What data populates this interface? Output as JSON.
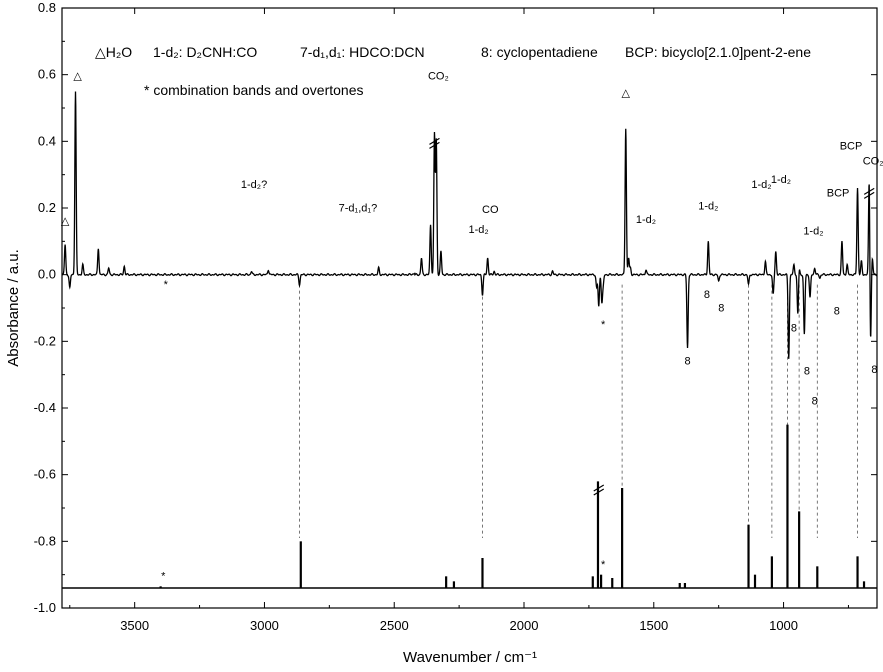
{
  "chart_data": {
    "type": "line",
    "xlabel": "Wavenumber / cm⁻¹",
    "ylabel": "Absorbance / a.u.",
    "xlim": [
      3780,
      640
    ],
    "ylim": [
      -1.0,
      0.8
    ],
    "x_ticks": [
      3500,
      3000,
      2500,
      2000,
      1500,
      1000
    ],
    "y_ticks": [
      0.8,
      0.6,
      0.4,
      0.2,
      0.0,
      -0.2,
      -0.4,
      -0.6,
      -0.8,
      -1.0
    ],
    "x_tick_labels": [
      "3500",
      "3000",
      "2500",
      "2000",
      "1500",
      "1000"
    ],
    "y_tick_labels": [
      "0.8",
      "0.6",
      "0.4",
      "0.2",
      "0.0",
      "-0.2",
      "-0.4",
      "-0.6",
      "-0.8",
      "-1.0"
    ],
    "grid": false,
    "legend": {
      "h2o": "△H₂O",
      "d2cnh": "1-d₂: D₂CNH:CO",
      "hdco": "7-d₁,d₁: HDCO:DCN",
      "cp": "8: cyclopentadiene",
      "bcp": "BCP: bicyclo[2.1.0]pent-2-ene",
      "star": "* combination bands and overtones"
    },
    "series": [
      {
        "role": "experimental difference spectrum",
        "baseline": 0.0,
        "peaks": [
          {
            "x": 3768,
            "y": 0.09
          },
          {
            "x": 3750,
            "y": -0.04
          },
          {
            "x": 3728,
            "y": 0.55
          },
          {
            "x": 3700,
            "y": 0.03
          },
          {
            "x": 3640,
            "y": 0.08
          },
          {
            "x": 3600,
            "y": 0.02
          },
          {
            "x": 3540,
            "y": 0.025
          },
          {
            "x": 3050,
            "y": 0.01
          },
          {
            "x": 2985,
            "y": 0.015
          },
          {
            "x": 2865,
            "y": -0.03
          },
          {
            "x": 2560,
            "y": 0.02
          },
          {
            "x": 2395,
            "y": 0.05
          },
          {
            "x": 2360,
            "y": 0.15
          },
          {
            "x": 2345,
            "y": 0.42
          },
          {
            "x": 2338,
            "y": 0.4
          },
          {
            "x": 2320,
            "y": 0.07
          },
          {
            "x": 2160,
            "y": -0.06
          },
          {
            "x": 2140,
            "y": 0.05
          },
          {
            "x": 2115,
            "y": 0.01
          },
          {
            "x": 1890,
            "y": 0.01
          },
          {
            "x": 1720,
            "y": -0.04
          },
          {
            "x": 1712,
            "y": -0.095
          },
          {
            "x": 1700,
            "y": -0.08
          },
          {
            "x": 1695,
            "y": -0.03
          },
          {
            "x": 1608,
            "y": 0.44
          },
          {
            "x": 1597,
            "y": 0.05
          },
          {
            "x": 1590,
            "y": 0.02
          },
          {
            "x": 1530,
            "y": 0.015
          },
          {
            "x": 1370,
            "y": -0.22
          },
          {
            "x": 1290,
            "y": 0.1
          },
          {
            "x": 1250,
            "y": -0.02
          },
          {
            "x": 1135,
            "y": -0.03
          },
          {
            "x": 1070,
            "y": 0.04
          },
          {
            "x": 1040,
            "y": -0.06
          },
          {
            "x": 1030,
            "y": 0.07
          },
          {
            "x": 980,
            "y": -0.25
          },
          {
            "x": 960,
            "y": 0.03
          },
          {
            "x": 945,
            "y": -0.12
          },
          {
            "x": 940,
            "y": 0.02
          },
          {
            "x": 920,
            "y": -0.18
          },
          {
            "x": 898,
            "y": -0.07
          },
          {
            "x": 880,
            "y": 0.02
          },
          {
            "x": 860,
            "y": -0.01
          },
          {
            "x": 775,
            "y": 0.1
          },
          {
            "x": 755,
            "y": 0.03
          },
          {
            "x": 715,
            "y": 0.26
          },
          {
            "x": 700,
            "y": 0.04
          },
          {
            "x": 670,
            "y": 0.3
          },
          {
            "x": 665,
            "y": -0.22
          },
          {
            "x": 658,
            "y": 0.05
          }
        ]
      },
      {
        "role": "calculated spectrum",
        "baseline": -0.94,
        "sticks": [
          {
            "x": 3400,
            "y": -0.935
          },
          {
            "x": 2860,
            "y": -0.8
          },
          {
            "x": 2300,
            "y": -0.905
          },
          {
            "x": 2270,
            "y": -0.92
          },
          {
            "x": 2160,
            "y": -0.85
          },
          {
            "x": 1735,
            "y": -0.905
          },
          {
            "x": 1715,
            "y": -0.62
          },
          {
            "x": 1703,
            "y": -0.9
          },
          {
            "x": 1660,
            "y": -0.91
          },
          {
            "x": 1622,
            "y": -0.64
          },
          {
            "x": 1400,
            "y": -0.925
          },
          {
            "x": 1380,
            "y": -0.925
          },
          {
            "x": 1135,
            "y": -0.75
          },
          {
            "x": 1110,
            "y": -0.9
          },
          {
            "x": 1045,
            "y": -0.845
          },
          {
            "x": 985,
            "y": -0.45
          },
          {
            "x": 940,
            "y": -0.71
          },
          {
            "x": 870,
            "y": -0.875
          },
          {
            "x": 715,
            "y": -0.845
          },
          {
            "x": 690,
            "y": -0.92
          }
        ]
      }
    ],
    "correlations": [
      2865,
      2160,
      1622,
      1135,
      1045,
      985,
      940,
      870,
      715
    ],
    "annotations": [
      {
        "text": "△",
        "x": 3720,
        "y": 0.585
      },
      {
        "text": "△",
        "x": 3768,
        "y": 0.15
      },
      {
        "text": "1-d₂?",
        "x": 3040,
        "y": 0.26
      },
      {
        "text": "7-d₁,d₁?",
        "x": 2640,
        "y": 0.19
      },
      {
        "text": "CO₂",
        "x": 2330,
        "y": 0.585
      },
      {
        "text": "1-d₂",
        "x": 2175,
        "y": 0.125
      },
      {
        "text": "CO",
        "x": 2130,
        "y": 0.185
      },
      {
        "text": "△",
        "x": 1608,
        "y": 0.535
      },
      {
        "text": "1-d₂",
        "x": 1530,
        "y": 0.155
      },
      {
        "text": "*",
        "x": 3380,
        "y": -0.04
      },
      {
        "text": "*",
        "x": 1695,
        "y": -0.16
      },
      {
        "text": "8",
        "x": 1370,
        "y": -0.27
      },
      {
        "text": "1-d₂",
        "x": 1290,
        "y": 0.195
      },
      {
        "text": "8",
        "x": 1295,
        "y": -0.07
      },
      {
        "text": "8",
        "x": 1240,
        "y": -0.11
      },
      {
        "text": "1-d₂",
        "x": 1085,
        "y": 0.26
      },
      {
        "text": "1-d₂",
        "x": 1010,
        "y": 0.275
      },
      {
        "text": "8",
        "x": 960,
        "y": -0.17
      },
      {
        "text": "1-d₂",
        "x": 885,
        "y": 0.12
      },
      {
        "text": "8",
        "x": 910,
        "y": -0.3
      },
      {
        "text": "8",
        "x": 880,
        "y": -0.39
      },
      {
        "text": "BCP",
        "x": 790,
        "y": 0.235
      },
      {
        "text": "BCP",
        "x": 740,
        "y": 0.375
      },
      {
        "text": "8",
        "x": 795,
        "y": -0.12
      },
      {
        "text": "CO₂",
        "x": 655,
        "y": 0.33
      },
      {
        "text": "8",
        "x": 650,
        "y": -0.295
      },
      {
        "text": "*",
        "x": 3390,
        "y": -0.915
      },
      {
        "text": "*",
        "x": 1695,
        "y": -0.88
      }
    ]
  }
}
